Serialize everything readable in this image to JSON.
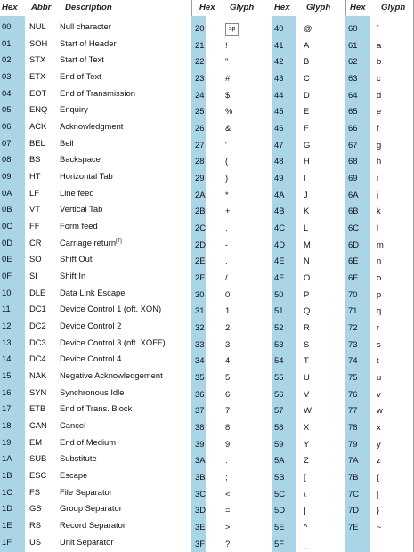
{
  "headers": {
    "hex": "Hex",
    "abbr": "Abbr",
    "description": "Description",
    "glyph": "Glyph"
  },
  "control": [
    {
      "hex": "00",
      "abbr": "NUL",
      "desc": "Null character"
    },
    {
      "hex": "01",
      "abbr": "SOH",
      "desc": "Start of Header"
    },
    {
      "hex": "02",
      "abbr": "STX",
      "desc": "Start of Text"
    },
    {
      "hex": "03",
      "abbr": "ETX",
      "desc": "End of Text"
    },
    {
      "hex": "04",
      "abbr": "EOT",
      "desc": "End of Transmission"
    },
    {
      "hex": "05",
      "abbr": "ENQ",
      "desc": "Enquiry"
    },
    {
      "hex": "06",
      "abbr": "ACK",
      "desc": "Acknowledgment"
    },
    {
      "hex": "07",
      "abbr": "BEL",
      "desc": "Bell"
    },
    {
      "hex": "08",
      "abbr": "BS",
      "desc": "Backspace"
    },
    {
      "hex": "09",
      "abbr": "HT",
      "desc": "Horizontal Tab"
    },
    {
      "hex": "0A",
      "abbr": "LF",
      "desc": "Line feed"
    },
    {
      "hex": "0B",
      "abbr": "VT",
      "desc": "Vertical Tab"
    },
    {
      "hex": "0C",
      "abbr": "FF",
      "desc": "Form feed"
    },
    {
      "hex": "0D",
      "abbr": "CR",
      "desc": "Carriage return",
      "note": "[7]"
    },
    {
      "hex": "0E",
      "abbr": "SO",
      "desc": "Shift Out"
    },
    {
      "hex": "0F",
      "abbr": "SI",
      "desc": "Shift In"
    },
    {
      "hex": "10",
      "abbr": "DLE",
      "desc": "Data Link Escape"
    },
    {
      "hex": "11",
      "abbr": "DC1",
      "desc": "Device Control 1 (oft. XON)"
    },
    {
      "hex": "12",
      "abbr": "DC2",
      "desc": "Device Control 2"
    },
    {
      "hex": "13",
      "abbr": "DC3",
      "desc": "Device Control 3 (oft. XOFF)"
    },
    {
      "hex": "14",
      "abbr": "DC4",
      "desc": "Device Control 4"
    },
    {
      "hex": "15",
      "abbr": "NAK",
      "desc": "Negative Acknowledgement"
    },
    {
      "hex": "16",
      "abbr": "SYN",
      "desc": "Synchronous Idle"
    },
    {
      "hex": "17",
      "abbr": "ETB",
      "desc": "End of Trans. Block"
    },
    {
      "hex": "18",
      "abbr": "CAN",
      "desc": "Cancel"
    },
    {
      "hex": "19",
      "abbr": "EM",
      "desc": "End of Medium"
    },
    {
      "hex": "1A",
      "abbr": "SUB",
      "desc": "Substitute"
    },
    {
      "hex": "1B",
      "abbr": "ESC",
      "desc": "Escape"
    },
    {
      "hex": "1C",
      "abbr": "FS",
      "desc": "File Separator"
    },
    {
      "hex": "1D",
      "abbr": "GS",
      "desc": "Group Separator"
    },
    {
      "hex": "1E",
      "abbr": "RS",
      "desc": "Record Separator"
    },
    {
      "hex": "1F",
      "abbr": "US",
      "desc": "Unit Separator"
    }
  ],
  "glyph_columns": [
    [
      {
        "hex": "20",
        "glyph": "sp"
      },
      {
        "hex": "21",
        "glyph": "!"
      },
      {
        "hex": "22",
        "glyph": "\""
      },
      {
        "hex": "23",
        "glyph": "#"
      },
      {
        "hex": "24",
        "glyph": "$"
      },
      {
        "hex": "25",
        "glyph": "%"
      },
      {
        "hex": "26",
        "glyph": "&"
      },
      {
        "hex": "27",
        "glyph": "'"
      },
      {
        "hex": "28",
        "glyph": "("
      },
      {
        "hex": "29",
        "glyph": ")"
      },
      {
        "hex": "2A",
        "glyph": "*"
      },
      {
        "hex": "2B",
        "glyph": "+"
      },
      {
        "hex": "2C",
        "glyph": ","
      },
      {
        "hex": "2D",
        "glyph": "-"
      },
      {
        "hex": "2E",
        "glyph": "."
      },
      {
        "hex": "2F",
        "glyph": "/"
      },
      {
        "hex": "30",
        "glyph": "0"
      },
      {
        "hex": "31",
        "glyph": "1"
      },
      {
        "hex": "32",
        "glyph": "2"
      },
      {
        "hex": "33",
        "glyph": "3"
      },
      {
        "hex": "34",
        "glyph": "4"
      },
      {
        "hex": "35",
        "glyph": "5"
      },
      {
        "hex": "36",
        "glyph": "6"
      },
      {
        "hex": "37",
        "glyph": "7"
      },
      {
        "hex": "38",
        "glyph": "8"
      },
      {
        "hex": "39",
        "glyph": "9"
      },
      {
        "hex": "3A",
        "glyph": ":"
      },
      {
        "hex": "3B",
        "glyph": ";"
      },
      {
        "hex": "3C",
        "glyph": "<"
      },
      {
        "hex": "3D",
        "glyph": "="
      },
      {
        "hex": "3E",
        "glyph": ">"
      },
      {
        "hex": "3F",
        "glyph": "?"
      }
    ],
    [
      {
        "hex": "40",
        "glyph": "@"
      },
      {
        "hex": "41",
        "glyph": "A"
      },
      {
        "hex": "42",
        "glyph": "B"
      },
      {
        "hex": "43",
        "glyph": "C"
      },
      {
        "hex": "44",
        "glyph": "D"
      },
      {
        "hex": "45",
        "glyph": "E"
      },
      {
        "hex": "46",
        "glyph": "F"
      },
      {
        "hex": "47",
        "glyph": "G"
      },
      {
        "hex": "48",
        "glyph": "H"
      },
      {
        "hex": "49",
        "glyph": "I"
      },
      {
        "hex": "4A",
        "glyph": "J"
      },
      {
        "hex": "4B",
        "glyph": "K"
      },
      {
        "hex": "4C",
        "glyph": "L"
      },
      {
        "hex": "4D",
        "glyph": "M"
      },
      {
        "hex": "4E",
        "glyph": "N"
      },
      {
        "hex": "4F",
        "glyph": "O"
      },
      {
        "hex": "50",
        "glyph": "P"
      },
      {
        "hex": "51",
        "glyph": "Q"
      },
      {
        "hex": "52",
        "glyph": "R"
      },
      {
        "hex": "53",
        "glyph": "S"
      },
      {
        "hex": "54",
        "glyph": "T"
      },
      {
        "hex": "55",
        "glyph": "U"
      },
      {
        "hex": "56",
        "glyph": "V"
      },
      {
        "hex": "57",
        "glyph": "W"
      },
      {
        "hex": "58",
        "glyph": "X"
      },
      {
        "hex": "59",
        "glyph": "Y"
      },
      {
        "hex": "5A",
        "glyph": "Z"
      },
      {
        "hex": "5B",
        "glyph": "["
      },
      {
        "hex": "5C",
        "glyph": "\\"
      },
      {
        "hex": "5D",
        "glyph": "]"
      },
      {
        "hex": "5E",
        "glyph": "^"
      },
      {
        "hex": "5F",
        "glyph": "_"
      }
    ],
    [
      {
        "hex": "60",
        "glyph": "`"
      },
      {
        "hex": "61",
        "glyph": "a"
      },
      {
        "hex": "62",
        "glyph": "b"
      },
      {
        "hex": "63",
        "glyph": "c"
      },
      {
        "hex": "64",
        "glyph": "d"
      },
      {
        "hex": "65",
        "glyph": "e"
      },
      {
        "hex": "66",
        "glyph": "f"
      },
      {
        "hex": "67",
        "glyph": "g"
      },
      {
        "hex": "68",
        "glyph": "h"
      },
      {
        "hex": "69",
        "glyph": "i"
      },
      {
        "hex": "6A",
        "glyph": "j"
      },
      {
        "hex": "6B",
        "glyph": "k"
      },
      {
        "hex": "6C",
        "glyph": "l"
      },
      {
        "hex": "6D",
        "glyph": "m"
      },
      {
        "hex": "6E",
        "glyph": "n"
      },
      {
        "hex": "6F",
        "glyph": "o"
      },
      {
        "hex": "70",
        "glyph": "p"
      },
      {
        "hex": "71",
        "glyph": "q"
      },
      {
        "hex": "72",
        "glyph": "r"
      },
      {
        "hex": "73",
        "glyph": "s"
      },
      {
        "hex": "74",
        "glyph": "t"
      },
      {
        "hex": "75",
        "glyph": "u"
      },
      {
        "hex": "76",
        "glyph": "v"
      },
      {
        "hex": "77",
        "glyph": "w"
      },
      {
        "hex": "78",
        "glyph": "x"
      },
      {
        "hex": "79",
        "glyph": "y"
      },
      {
        "hex": "7A",
        "glyph": "z"
      },
      {
        "hex": "7B",
        "glyph": "{"
      },
      {
        "hex": "7C",
        "glyph": "|"
      },
      {
        "hex": "7D",
        "glyph": "}"
      },
      {
        "hex": "7E",
        "glyph": "~"
      }
    ]
  ],
  "colors": {
    "hex_column_bg": "#a9d5e7",
    "divider": "#9e9e9e"
  }
}
